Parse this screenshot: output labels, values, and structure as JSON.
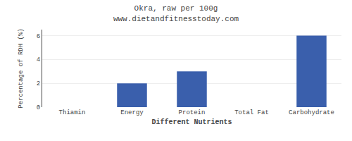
{
  "chart_data": {
    "type": "bar",
    "title": "Okra, raw per 100g",
    "subtitle": "www.dietandfitnesstoday.com",
    "xlabel": "Different Nutrients",
    "ylabel": "Percentage of RDH (%)",
    "categories": [
      "Thiamin",
      "Energy",
      "Protein",
      "Total Fat",
      "Carbohydrate"
    ],
    "values": [
      0,
      2.0,
      3.0,
      0,
      6.0
    ],
    "color": "#3a5fac",
    "ylim": [
      0,
      6.5
    ],
    "yticks": [
      0,
      2,
      4,
      6
    ],
    "grid": true
  }
}
